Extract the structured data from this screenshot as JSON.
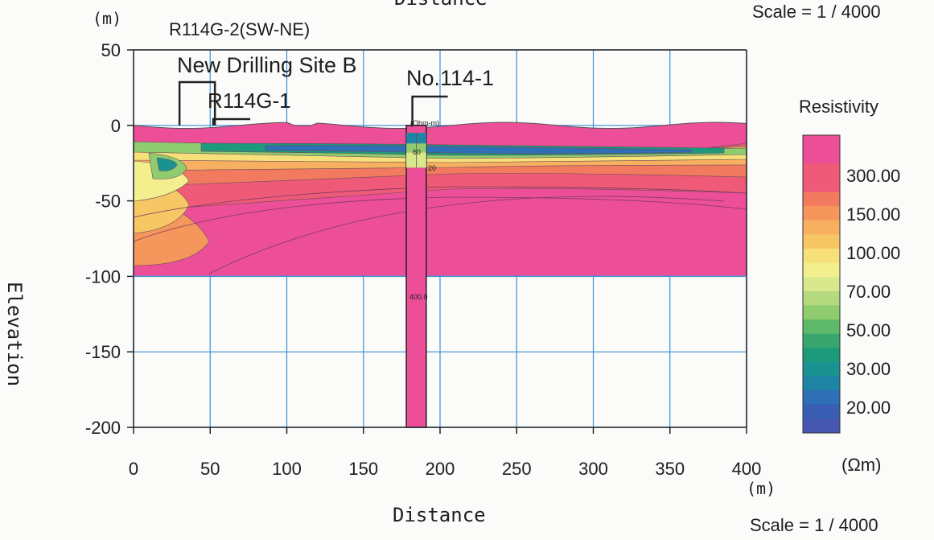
{
  "chart_data": {
    "type": "heatmap",
    "title": "R114G-2(SW-NE)",
    "top_axis_label": "Distance",
    "scale_top": "Scale = 1 / 4000",
    "scale_bottom": "Scale = 1 / 4000",
    "xlabel": "Distance",
    "x_unit": "(m)",
    "ylabel": "Elevation",
    "y_unit": "(m)",
    "xlim": [
      0,
      400
    ],
    "ylim": [
      -200,
      50
    ],
    "x_ticks": [
      0,
      50,
      100,
      150,
      200,
      250,
      300,
      350,
      400
    ],
    "y_ticks": [
      50,
      0,
      -50,
      -100,
      -150,
      -200
    ],
    "x_tick_labels": [
      "0",
      "50",
      "100",
      "150",
      "200",
      "250",
      "300",
      "350",
      "400"
    ],
    "y_tick_labels": [
      "50",
      "0",
      "-50",
      "-100",
      "-150",
      "-200"
    ],
    "grid": true,
    "section_bottom": -100,
    "annotations": {
      "site_b": "New Drilling Site B",
      "r114g1": "R114G-1",
      "no1141": "No.114-1",
      "well_header": "(Ohm-m)",
      "well_val_60": "60",
      "well_val_200": "20",
      "well_val_400": "400.0"
    },
    "markers": {
      "site_b_x": 30,
      "r114g1_x": 52,
      "no1141_x": 183
    },
    "well": {
      "x_range": [
        178,
        191
      ],
      "bottom": -200
    },
    "legend": {
      "title": "Resistivity",
      "unit": "(Ωm)",
      "placement": "right",
      "labels": [
        "300.00",
        "150.00",
        "100.00",
        "70.00",
        "50.00",
        "30.00",
        "20.00"
      ],
      "colors": [
        "#ec4f98",
        "#ec4f98",
        "#ef5a78",
        "#ef5a78",
        "#f27a5e",
        "#f5975c",
        "#f7b060",
        "#f7c765",
        "#f7e07a",
        "#f3ee8e",
        "#d9e88c",
        "#b4d97e",
        "#8fcb6f",
        "#5eb96a",
        "#38a66e",
        "#1d9a7c",
        "#1a9292",
        "#1d84a6",
        "#2e6fb6",
        "#3a5db4",
        "#4557b0"
      ]
    }
  }
}
